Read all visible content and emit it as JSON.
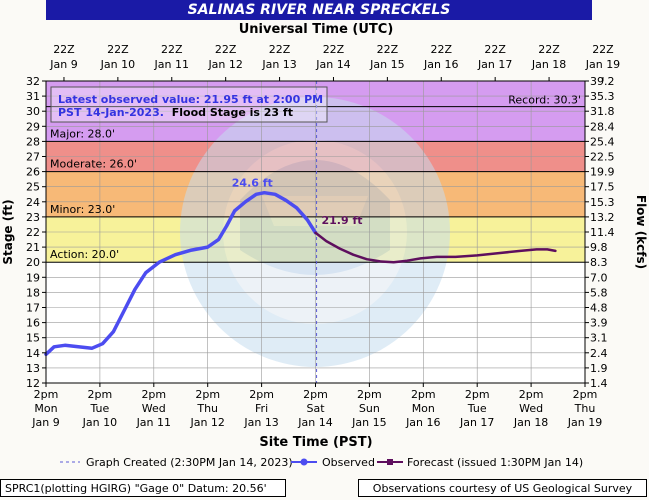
{
  "title": "SALINAS RIVER NEAR SPRECKELS",
  "top_axis_title": "Universal Time (UTC)",
  "bottom_axis_title": "Site Time (PST)",
  "left_axis_title": "Stage (ft)",
  "right_axis_title": "Flow (kcfs)",
  "top_ticks": [
    {
      "l1": "22Z",
      "l2": "Jan 9"
    },
    {
      "l1": "22Z",
      "l2": "Jan 10"
    },
    {
      "l1": "22Z",
      "l2": "Jan 11"
    },
    {
      "l1": "22Z",
      "l2": "Jan 12"
    },
    {
      "l1": "22Z",
      "l2": "Jan 13"
    },
    {
      "l1": "22Z",
      "l2": "Jan 14"
    },
    {
      "l1": "22Z",
      "l2": "Jan 15"
    },
    {
      "l1": "22Z",
      "l2": "Jan 16"
    },
    {
      "l1": "22Z",
      "l2": "Jan 17"
    },
    {
      "l1": "22Z",
      "l2": "Jan 18"
    },
    {
      "l1": "22Z",
      "l2": "Jan 19"
    }
  ],
  "bottom_ticks": [
    {
      "l1": "2pm",
      "l2": "Mon",
      "l3": "Jan 9"
    },
    {
      "l1": "2pm",
      "l2": "Tue",
      "l3": "Jan 10"
    },
    {
      "l1": "2pm",
      "l2": "Wed",
      "l3": "Jan 11"
    },
    {
      "l1": "2pm",
      "l2": "Thu",
      "l3": "Jan 12"
    },
    {
      "l1": "2pm",
      "l2": "Fri",
      "l3": "Jan 13"
    },
    {
      "l1": "2pm",
      "l2": "Sat",
      "l3": "Jan 14"
    },
    {
      "l1": "2pm",
      "l2": "Sun",
      "l3": "Jan 15"
    },
    {
      "l1": "2pm",
      "l2": "Mon",
      "l3": "Jan 16"
    },
    {
      "l1": "2pm",
      "l2": "Tue",
      "l3": "Jan 17"
    },
    {
      "l1": "2pm",
      "l2": "Wed",
      "l3": "Jan 18"
    },
    {
      "l1": "2pm",
      "l2": "Thu",
      "l3": "Jan 19"
    }
  ],
  "right_ticks": [
    "1.4",
    "1.9",
    "2.4",
    "3.1",
    "3.9",
    "4.8",
    "5.8",
    "7.0",
    "8.3",
    "9.8",
    "11.4",
    "13.2",
    "15.3",
    "17.5",
    "19.9",
    "22.5",
    "25.4",
    "28.4",
    "31.8",
    "35.3",
    "39.2"
  ],
  "info_box": {
    "line1": "Latest observed value: 21.95 ft at 2:00 PM",
    "line2_blue": "PST 14-Jan-2023.",
    "line2_black": "Flood Stage is 23 ft"
  },
  "record_label": "Record: 30.3'",
  "zones": [
    {
      "name": "Major: 28.0'",
      "from": 28.0,
      "to": 32.0,
      "color": "#d59cf0"
    },
    {
      "name": "Moderate: 26.0'",
      "from": 26.0,
      "to": 28.0,
      "color": "#ef8f8a"
    },
    {
      "name": "Minor: 23.0'",
      "from": 23.0,
      "to": 26.0,
      "color": "#f7b977"
    },
    {
      "name": "Action: 20.0'",
      "from": 20.0,
      "to": 23.0,
      "color": "#f7f29a"
    }
  ],
  "colors": {
    "observed": "#4c4cf0",
    "forecast": "#5e0f5e",
    "plot_bg": "#ffffff"
  },
  "legend": {
    "graph_created": "Graph Created (2:30PM Jan 14, 2023)",
    "observed": "Observed",
    "forecast": "Forecast (issued 1:30PM Jan 14)"
  },
  "footer_left": "SPRC1(plotting HGIRG) \"Gage 0\" Datum: 20.56'",
  "footer_right": "Observations courtesy of US Geological Survey",
  "chart_data": {
    "type": "line",
    "x_unit": "days after 2pm PST Jan 9, 2023",
    "xlim": [
      0,
      10
    ],
    "ylim": [
      12,
      32
    ],
    "graph_created_x": 5.02,
    "record": 30.3,
    "series": [
      {
        "name": "Observed",
        "points": [
          [
            0.0,
            13.9
          ],
          [
            0.15,
            14.4
          ],
          [
            0.35,
            14.5
          ],
          [
            0.6,
            14.4
          ],
          [
            0.85,
            14.3
          ],
          [
            1.05,
            14.6
          ],
          [
            1.25,
            15.4
          ],
          [
            1.45,
            16.8
          ],
          [
            1.65,
            18.2
          ],
          [
            1.85,
            19.3
          ],
          [
            2.1,
            20.0
          ],
          [
            2.4,
            20.5
          ],
          [
            2.7,
            20.8
          ],
          [
            3.0,
            21.0
          ],
          [
            3.2,
            21.5
          ],
          [
            3.35,
            22.4
          ],
          [
            3.5,
            23.4
          ],
          [
            3.7,
            24.0
          ],
          [
            3.9,
            24.5
          ],
          [
            4.05,
            24.6
          ],
          [
            4.25,
            24.5
          ],
          [
            4.45,
            24.1
          ],
          [
            4.65,
            23.6
          ],
          [
            4.85,
            22.8
          ],
          [
            5.0,
            21.95
          ]
        ]
      },
      {
        "name": "Forecast",
        "points": [
          [
            5.0,
            21.95
          ],
          [
            5.2,
            21.4
          ],
          [
            5.45,
            20.9
          ],
          [
            5.7,
            20.5
          ],
          [
            5.95,
            20.2
          ],
          [
            6.2,
            20.05
          ],
          [
            6.45,
            20.0
          ],
          [
            6.7,
            20.1
          ],
          [
            6.95,
            20.25
          ],
          [
            7.25,
            20.35
          ],
          [
            7.6,
            20.35
          ],
          [
            8.0,
            20.45
          ],
          [
            8.4,
            20.6
          ],
          [
            8.8,
            20.75
          ],
          [
            9.1,
            20.85
          ],
          [
            9.3,
            20.85
          ],
          [
            9.45,
            20.75
          ]
        ]
      }
    ],
    "annotations": [
      {
        "text": "24.6 ft",
        "x": 4.05,
        "y": 24.6
      },
      {
        "text": "21.9 ft",
        "x": 5.0,
        "y": 21.95
      }
    ]
  }
}
